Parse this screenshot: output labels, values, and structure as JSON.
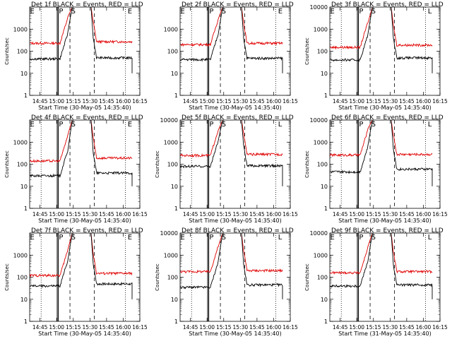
{
  "chart_data": [
    {
      "type": "line",
      "title": "Det 1f BLACK = Events, RED = LLD",
      "xlabel": "Start Time (30-May-05 14:35:40)",
      "ylabel": "Counts/sec",
      "yscale": "log",
      "ylim": [
        1,
        10000
      ],
      "x_ticks": [
        "14:45",
        "15:00",
        "15:15",
        "15:30",
        "15:45",
        "16:00",
        "16:15"
      ],
      "y_ticks": [
        "1",
        "10",
        "100",
        "1000"
      ],
      "region_labels": [
        "E",
        "P",
        "S",
        "E"
      ],
      "red_base": 230,
      "red_after": 270,
      "black_base": 45,
      "black_after": 50,
      "black_end": 10
    },
    {
      "type": "line",
      "title": "Det 2f BLACK = Events, RED = LLD",
      "xlabel": "Start Time (30-May-05 14:35:40)",
      "ylabel": "",
      "yscale": "log",
      "ylim": [
        1,
        10000
      ],
      "x_ticks": [
        "14:45",
        "15:00",
        "15:15",
        "15:30",
        "15:45",
        "16:00",
        "16:15"
      ],
      "y_ticks": [
        "1",
        "10",
        "100",
        "1000"
      ],
      "region_labels": [
        "E",
        "P",
        "S",
        "E"
      ],
      "red_base": 200,
      "red_after": 230,
      "black_base": 42,
      "black_after": 48,
      "black_end": 10
    },
    {
      "type": "line",
      "title": "Det 3f BLACK = Events, RED = LLD",
      "xlabel": "Start Time (30-May-05 14:35:40)",
      "ylabel": "Counts/sec",
      "yscale": "log",
      "ylim": [
        1,
        10000
      ],
      "x_ticks": [
        "14:45",
        "15:00",
        "15:15",
        "15:30",
        "15:45",
        "16:00",
        "16:15"
      ],
      "y_ticks": [
        "1",
        "10",
        "100",
        "1000",
        "10000"
      ],
      "region_labels": [
        "E",
        "P",
        "S",
        "L"
      ],
      "red_base": 150,
      "red_after": 190,
      "black_base": 40,
      "black_after": 50,
      "black_end": 10
    },
    {
      "type": "line",
      "title": "Det 4f BLACK = Events, RED = LLD",
      "xlabel": "Start Time (30-May-05 14:35:40)",
      "ylabel": "Counts/sec",
      "yscale": "log",
      "ylim": [
        1,
        10000
      ],
      "x_ticks": [
        "14:45",
        "15:00",
        "15:15",
        "15:30",
        "15:45",
        "16:00",
        "16:15"
      ],
      "y_ticks": [
        "1",
        "10",
        "100",
        "1000"
      ],
      "region_labels": [
        "E",
        "P",
        "S",
        "E"
      ],
      "red_base": 140,
      "red_after": 190,
      "black_base": 30,
      "black_after": 40,
      "black_end": 10
    },
    {
      "type": "line",
      "title": "Det 5f BLACK = Events, RED = LLD",
      "xlabel": "Start Time (30-May-05 14:35:40)",
      "ylabel": "Counts/sec",
      "yscale": "log",
      "ylim": [
        1,
        10000
      ],
      "x_ticks": [
        "14:45",
        "15:00",
        "15:15",
        "15:30",
        "15:45",
        "16:00",
        "16:15"
      ],
      "y_ticks": [
        "1",
        "10",
        "100",
        "1000",
        "10000"
      ],
      "region_labels": [
        "E",
        "P",
        "S",
        "L"
      ],
      "red_base": 250,
      "red_after": 280,
      "black_base": 80,
      "black_after": 85,
      "black_end": 10
    },
    {
      "type": "line",
      "title": "Det 6f BLACK = Events, RED = LLD",
      "xlabel": "Start Time (30-May-05 14:35:40)",
      "ylabel": "Counts/sec",
      "yscale": "log",
      "ylim": [
        1,
        10000
      ],
      "x_ticks": [
        "14:45",
        "15:00",
        "15:15",
        "15:30",
        "15:45",
        "16:00",
        "16:15"
      ],
      "y_ticks": [
        "1",
        "10",
        "100",
        "1000",
        "10000"
      ],
      "region_labels": [
        "E",
        "P",
        "S",
        "L"
      ],
      "red_base": 260,
      "red_after": 280,
      "black_base": 45,
      "black_after": 60,
      "black_end": 10
    },
    {
      "type": "line",
      "title": "Det 7f BLACK = Events, RED = LLD",
      "xlabel": "Start Time (30-May-05 14:35:40)",
      "ylabel": "Counts/sec",
      "yscale": "log",
      "ylim": [
        1,
        10000
      ],
      "x_ticks": [
        "14:45",
        "15:00",
        "15:15",
        "15:30",
        "15:45",
        "16:00",
        "16:15"
      ],
      "y_ticks": [
        "1",
        "10",
        "100",
        "1000"
      ],
      "region_labels": [
        "E",
        "P",
        "S",
        "E"
      ],
      "red_base": 120,
      "red_after": 150,
      "black_base": 40,
      "black_after": 50,
      "black_end": 10
    },
    {
      "type": "line",
      "title": "Det 8f BLACK = Events, RED = LLD",
      "xlabel": "Start Time (30-May-05 14:35:40)",
      "ylabel": "Counts/sec",
      "yscale": "log",
      "ylim": [
        1,
        10000
      ],
      "x_ticks": [
        "14:45",
        "15:00",
        "15:15",
        "15:30",
        "15:45",
        "16:00",
        "16:15"
      ],
      "y_ticks": [
        "1",
        "10",
        "100",
        "1000",
        "10000"
      ],
      "region_labels": [
        "E",
        "P",
        "S",
        "L"
      ],
      "red_base": 180,
      "red_after": 200,
      "black_base": 35,
      "black_after": 45,
      "black_end": 10
    },
    {
      "type": "line",
      "title": "Det 9f BLACK = Events, RED = LLD",
      "xlabel": "Start Time (31-May-05 14:35:40)",
      "ylabel": "Counts/sec",
      "yscale": "log",
      "ylim": [
        1,
        10000
      ],
      "x_ticks": [
        "14:45",
        "15:00",
        "15:15",
        "15:30",
        "15:45",
        "16:00",
        "16:15"
      ],
      "y_ticks": [
        "1",
        "10",
        "100",
        "1000",
        "10000"
      ],
      "region_labels": [
        "E",
        "P",
        "S",
        "L"
      ],
      "red_base": 160,
      "red_after": 180,
      "black_base": 40,
      "black_after": 45,
      "black_end": 10
    }
  ]
}
